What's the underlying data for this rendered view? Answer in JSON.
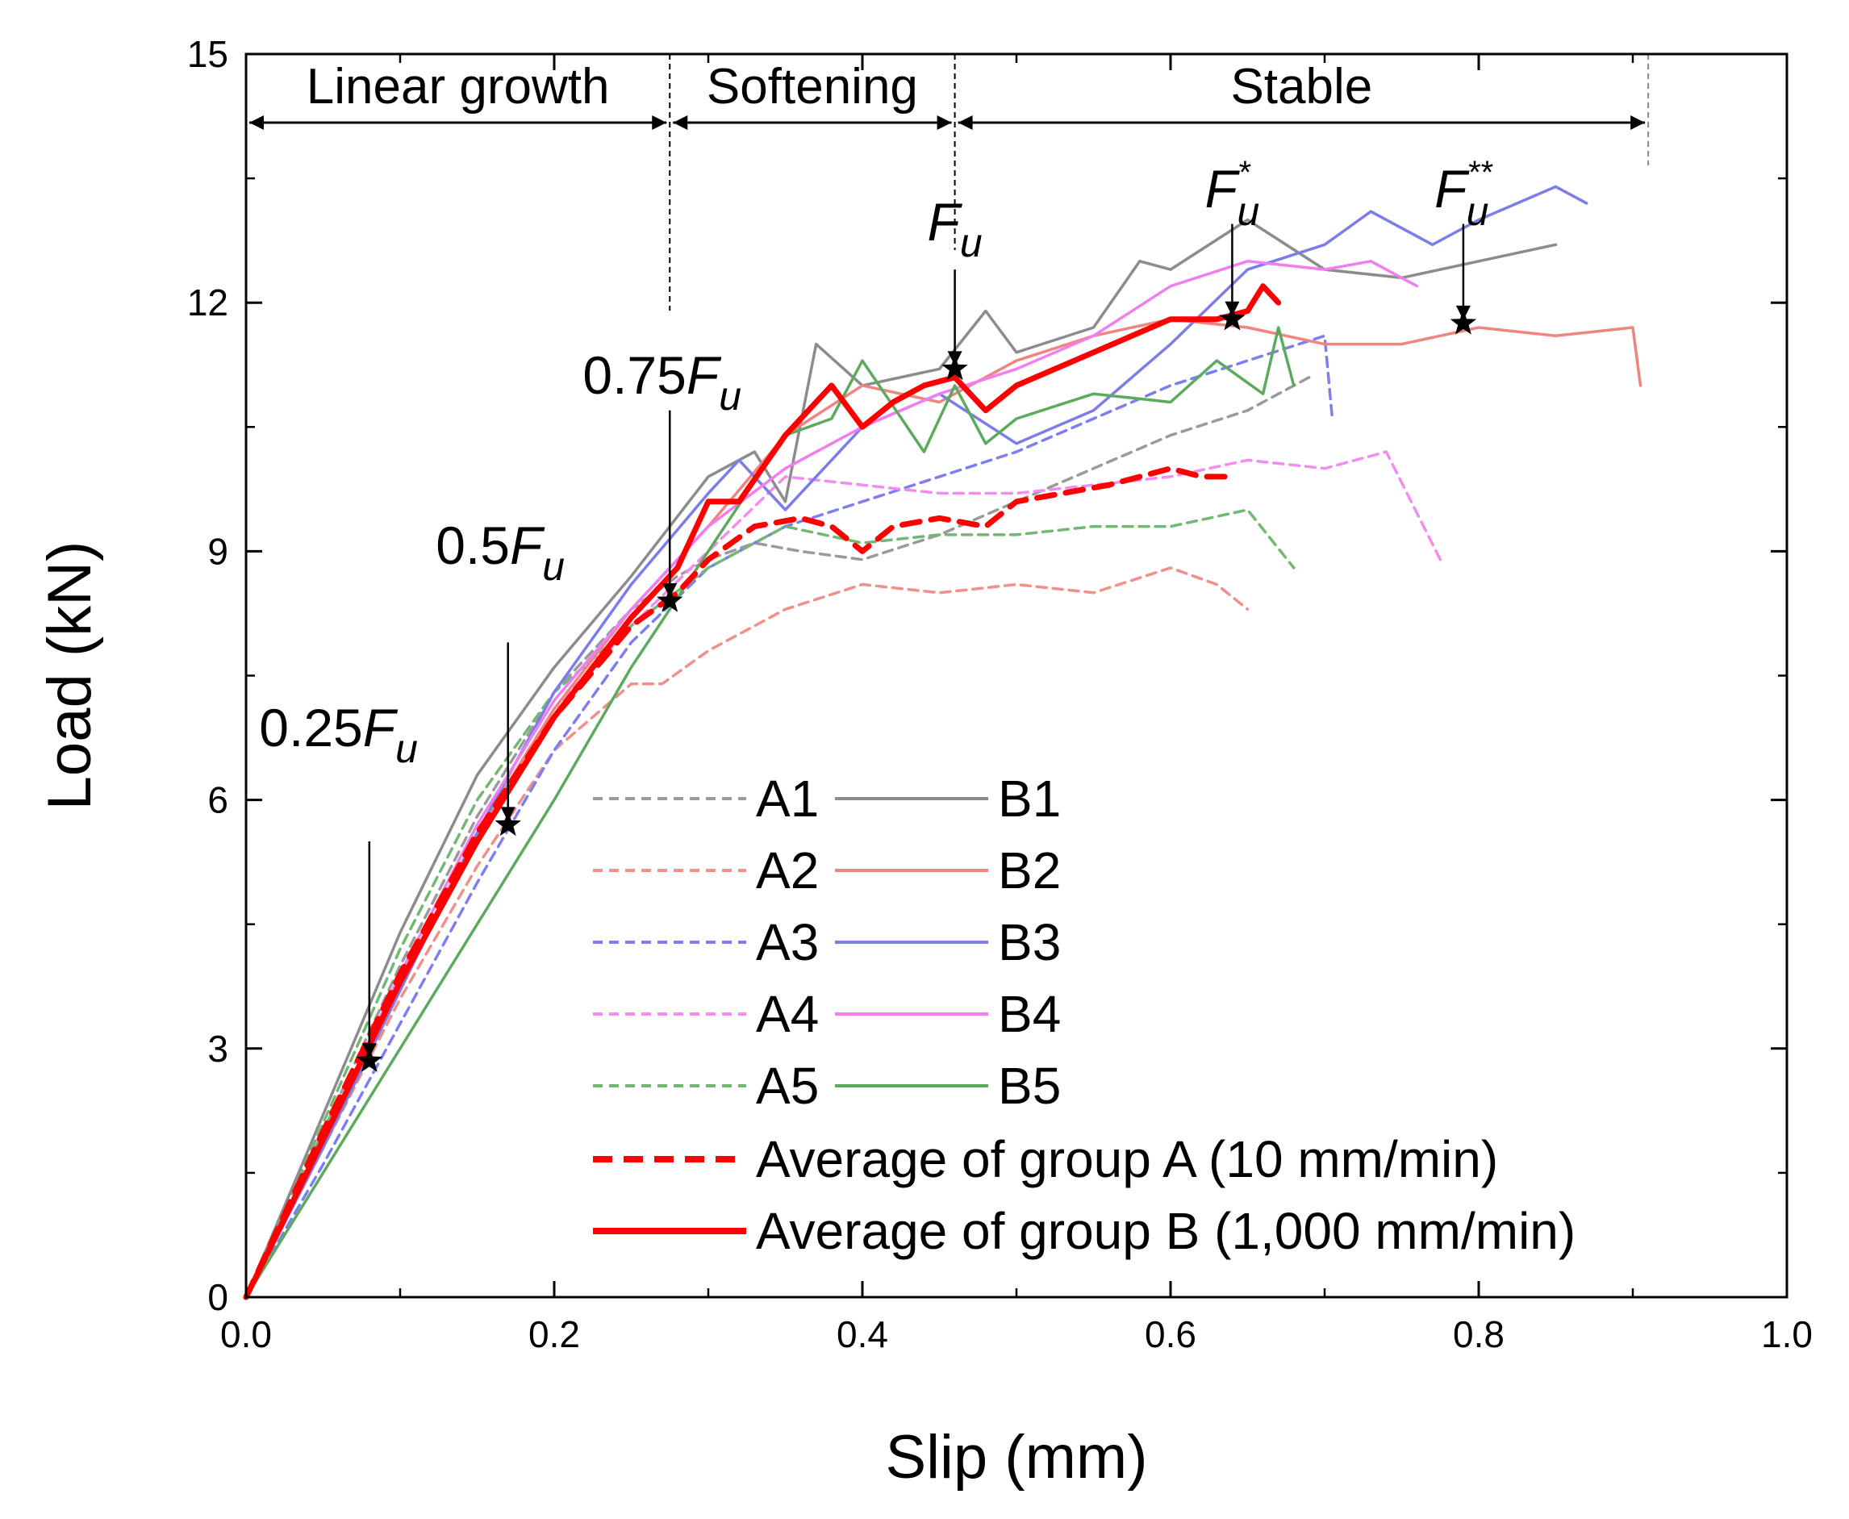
{
  "chart_data": {
    "type": "line",
    "title": "",
    "xlabel": "Slip (mm)",
    "ylabel": "Load (kN)",
    "xlim": [
      0,
      1.0
    ],
    "ylim": [
      0,
      15
    ],
    "x_ticks": [
      0.0,
      0.2,
      0.4,
      0.6,
      0.8,
      1.0
    ],
    "x_tick_labels": [
      "0.0",
      "0.2",
      "0.4",
      "0.6",
      "0.8",
      "1.0"
    ],
    "y_ticks": [
      0,
      3,
      6,
      9,
      12,
      15
    ],
    "y_tick_labels": [
      "0",
      "3",
      "6",
      "9",
      "12",
      "15"
    ],
    "grid": false,
    "legend_position": "bottom-right",
    "regions": [
      {
        "label": "Linear growth",
        "x0": 0.0,
        "x1": 0.275
      },
      {
        "label": "Softening",
        "x0": 0.275,
        "x1": 0.46
      },
      {
        "label": "Stable",
        "x0": 0.46,
        "x1": 0.91
      }
    ],
    "annotations": [
      {
        "name": "0.25Fu",
        "prefix": "0.25",
        "main": "F",
        "sub": "u",
        "sup": "",
        "x": 0.08,
        "y": 2.85
      },
      {
        "name": "0.5Fu",
        "prefix": "0.5",
        "main": "F",
        "sub": "u",
        "sup": "",
        "x": 0.17,
        "y": 5.7
      },
      {
        "name": "0.75Fu",
        "prefix": "0.75",
        "main": "F",
        "sub": "u",
        "sup": "",
        "x": 0.275,
        "y": 8.4
      },
      {
        "name": "Fu",
        "prefix": "",
        "main": "F",
        "sub": "u",
        "sup": "",
        "x": 0.46,
        "y": 11.2
      },
      {
        "name": "Fu*",
        "prefix": "",
        "main": "F",
        "sub": "u",
        "sup": "*",
        "x": 0.64,
        "y": 11.8
      },
      {
        "name": "Fu**",
        "prefix": "",
        "main": "F",
        "sub": "u",
        "sup": "**",
        "x": 0.79,
        "y": 11.75
      }
    ],
    "series": [
      {
        "name": "A1",
        "color": "#9a9a9a",
        "style": "dashed",
        "x": [
          0,
          0.05,
          0.1,
          0.15,
          0.2,
          0.25,
          0.28,
          0.3,
          0.33,
          0.36,
          0.4,
          0.45,
          0.5,
          0.55,
          0.6,
          0.65,
          0.69
        ],
        "y": [
          0,
          2.0,
          4.0,
          5.8,
          7.3,
          8.3,
          8.7,
          8.9,
          9.1,
          9.0,
          8.9,
          9.2,
          9.6,
          10.0,
          10.4,
          10.7,
          11.1
        ]
      },
      {
        "name": "A2",
        "color": "#f0908a",
        "style": "dashed",
        "x": [
          0,
          0.05,
          0.1,
          0.15,
          0.2,
          0.25,
          0.27,
          0.3,
          0.35,
          0.4,
          0.45,
          0.5,
          0.55,
          0.6,
          0.63,
          0.65
        ],
        "y": [
          0,
          1.8,
          3.6,
          5.2,
          6.6,
          7.4,
          7.4,
          7.8,
          8.3,
          8.6,
          8.5,
          8.6,
          8.5,
          8.8,
          8.6,
          8.3
        ]
      },
      {
        "name": "A3",
        "color": "#7d7ff0",
        "style": "dashed",
        "x": [
          0,
          0.05,
          0.1,
          0.15,
          0.2,
          0.25,
          0.3,
          0.35,
          0.4,
          0.45,
          0.5,
          0.55,
          0.6,
          0.65,
          0.7,
          0.705
        ],
        "y": [
          0,
          1.6,
          3.3,
          5.0,
          6.6,
          7.9,
          8.8,
          9.3,
          9.6,
          9.9,
          10.2,
          10.6,
          11.0,
          11.3,
          11.6,
          10.6
        ]
      },
      {
        "name": "A4",
        "color": "#f38cf0",
        "style": "dashed",
        "x": [
          0,
          0.05,
          0.1,
          0.15,
          0.2,
          0.25,
          0.3,
          0.35,
          0.4,
          0.45,
          0.5,
          0.55,
          0.6,
          0.65,
          0.7,
          0.74,
          0.775
        ],
        "y": [
          0,
          1.9,
          3.8,
          5.6,
          7.1,
          8.1,
          9.0,
          9.9,
          9.8,
          9.7,
          9.7,
          9.8,
          9.9,
          10.1,
          10.0,
          10.2,
          8.9
        ]
      },
      {
        "name": "A5",
        "color": "#72b872",
        "style": "dashed",
        "x": [
          0,
          0.05,
          0.1,
          0.15,
          0.2,
          0.25,
          0.3,
          0.35,
          0.4,
          0.45,
          0.5,
          0.55,
          0.6,
          0.65,
          0.68
        ],
        "y": [
          0,
          2.1,
          4.2,
          6.0,
          7.3,
          8.1,
          8.8,
          9.3,
          9.1,
          9.2,
          9.2,
          9.3,
          9.3,
          9.5,
          8.8
        ]
      },
      {
        "name": "B1",
        "color": "#8c8c8c",
        "style": "solid",
        "x": [
          0,
          0.05,
          0.1,
          0.15,
          0.2,
          0.25,
          0.3,
          0.33,
          0.35,
          0.37,
          0.4,
          0.45,
          0.48,
          0.5,
          0.55,
          0.58,
          0.6,
          0.65,
          0.7,
          0.75,
          0.8,
          0.85
        ],
        "y": [
          0,
          2.2,
          4.4,
          6.3,
          7.6,
          8.7,
          9.9,
          10.2,
          9.6,
          11.5,
          11.0,
          11.2,
          11.9,
          11.4,
          11.7,
          12.5,
          12.4,
          13.0,
          12.4,
          12.3,
          12.5,
          12.7
        ]
      },
      {
        "name": "B2",
        "color": "#f08580",
        "style": "solid",
        "x": [
          0,
          0.05,
          0.1,
          0.15,
          0.2,
          0.25,
          0.3,
          0.35,
          0.4,
          0.45,
          0.5,
          0.55,
          0.6,
          0.65,
          0.7,
          0.75,
          0.8,
          0.85,
          0.9,
          0.905
        ],
        "y": [
          0,
          1.9,
          3.8,
          5.6,
          7.1,
          8.3,
          9.3,
          10.4,
          11.0,
          10.8,
          11.3,
          11.6,
          11.8,
          11.7,
          11.5,
          11.5,
          11.7,
          11.6,
          11.7,
          11.0
        ]
      },
      {
        "name": "B3",
        "color": "#7b7de8",
        "style": "solid",
        "x": [
          0,
          0.05,
          0.1,
          0.15,
          0.2,
          0.25,
          0.3,
          0.32,
          0.35,
          0.4,
          0.45,
          0.5,
          0.55,
          0.6,
          0.65,
          0.7,
          0.73,
          0.77,
          0.8,
          0.85,
          0.87
        ],
        "y": [
          0,
          1.8,
          3.7,
          5.6,
          7.3,
          8.6,
          9.7,
          10.1,
          9.5,
          10.5,
          10.9,
          10.3,
          10.7,
          11.5,
          12.4,
          12.7,
          13.1,
          12.7,
          13.0,
          13.4,
          13.2
        ]
      },
      {
        "name": "B4",
        "color": "#f07ef0",
        "style": "solid",
        "x": [
          0,
          0.05,
          0.1,
          0.15,
          0.2,
          0.25,
          0.3,
          0.35,
          0.4,
          0.45,
          0.5,
          0.55,
          0.6,
          0.65,
          0.7,
          0.73,
          0.76
        ],
        "y": [
          0,
          1.9,
          3.9,
          5.7,
          7.2,
          8.3,
          9.3,
          10.0,
          10.5,
          10.9,
          11.2,
          11.6,
          12.2,
          12.5,
          12.4,
          12.5,
          12.2
        ]
      },
      {
        "name": "B5",
        "color": "#5cab5c",
        "style": "solid",
        "x": [
          0,
          0.05,
          0.1,
          0.15,
          0.2,
          0.25,
          0.3,
          0.35,
          0.38,
          0.4,
          0.44,
          0.46,
          0.48,
          0.5,
          0.55,
          0.6,
          0.63,
          0.66,
          0.67,
          0.68
        ],
        "y": [
          0,
          1.5,
          3.0,
          4.5,
          6.0,
          7.6,
          9.0,
          10.4,
          10.6,
          11.3,
          10.2,
          11.0,
          10.3,
          10.6,
          10.9,
          10.8,
          11.3,
          10.9,
          11.7,
          11.0
        ]
      },
      {
        "name": "Average of group A (10 mm/min)",
        "color": "#ff0000",
        "style": "dashed",
        "thick": true,
        "x": [
          0,
          0.05,
          0.1,
          0.15,
          0.2,
          0.25,
          0.28,
          0.3,
          0.33,
          0.36,
          0.38,
          0.4,
          0.42,
          0.45,
          0.48,
          0.5,
          0.53,
          0.56,
          0.6,
          0.62,
          0.64
        ],
        "y": [
          0,
          2.0,
          3.9,
          5.6,
          7.0,
          8.1,
          8.5,
          8.9,
          9.3,
          9.4,
          9.3,
          9.0,
          9.3,
          9.4,
          9.3,
          9.6,
          9.7,
          9.8,
          10.0,
          9.9,
          9.9
        ]
      },
      {
        "name": "Average of group B (1,000 mm/min)",
        "color": "#ff0000",
        "style": "solid",
        "thick": true,
        "x": [
          0,
          0.05,
          0.1,
          0.15,
          0.2,
          0.25,
          0.28,
          0.3,
          0.32,
          0.35,
          0.38,
          0.4,
          0.42,
          0.44,
          0.46,
          0.48,
          0.5,
          0.55,
          0.6,
          0.63,
          0.65,
          0.66,
          0.67
        ],
        "y": [
          0,
          1.9,
          3.8,
          5.5,
          7.0,
          8.2,
          8.8,
          9.6,
          9.6,
          10.4,
          11.0,
          10.5,
          10.8,
          11.0,
          11.1,
          10.7,
          11.0,
          11.4,
          11.8,
          11.8,
          11.9,
          12.2,
          12.0
        ]
      }
    ]
  }
}
